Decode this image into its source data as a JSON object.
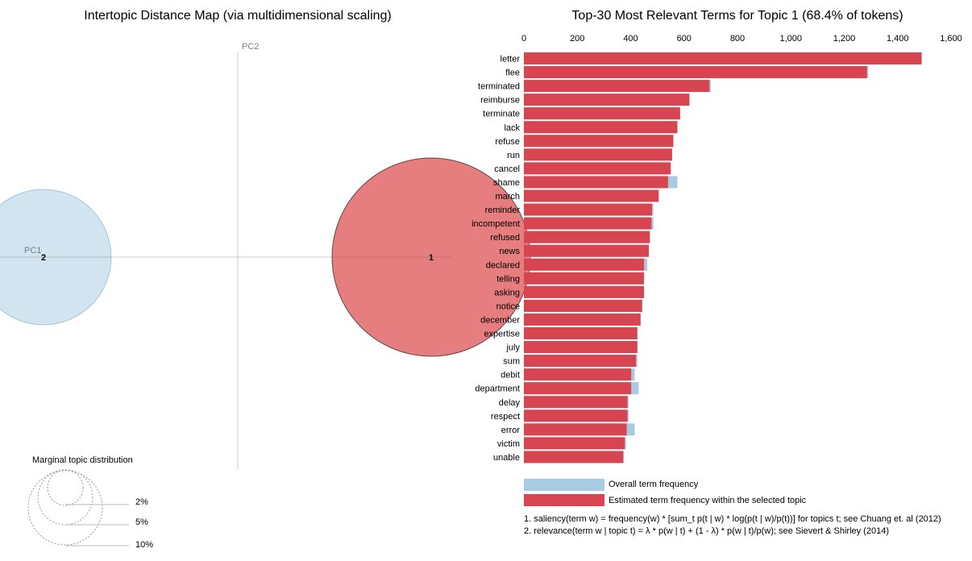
{
  "map": {
    "title": "Intertopic Distance Map (via multidimensional scaling)",
    "pc1_label": "PC1",
    "pc2_label": "PC2",
    "topics": [
      {
        "id": "1",
        "label": "1",
        "selected": true,
        "color": "#d62728"
      },
      {
        "id": "2",
        "label": "2",
        "selected": false,
        "color": "#1f77b4"
      }
    ],
    "marginal": {
      "title": "Marginal topic distribution",
      "sizes": [
        "2%",
        "5%",
        "10%"
      ]
    }
  },
  "chart_data": {
    "type": "bar",
    "orientation": "horizontal",
    "title": "Top-30 Most Relevant Terms for Topic 1 (68.4% of tokens)",
    "xlim": [
      0,
      1600
    ],
    "ticks": [
      "0",
      "200",
      "400",
      "600",
      "800",
      "1,000",
      "1,200",
      "1,400",
      "1,600"
    ],
    "tick_values": [
      0,
      200,
      400,
      600,
      800,
      1000,
      1200,
      1400,
      1600
    ],
    "categories": [
      "letter",
      "flee",
      "terminated",
      "reimburse",
      "terminate",
      "lack",
      "refuse",
      "run",
      "cancel",
      "shame",
      "march",
      "reminder",
      "incompetent",
      "refused",
      "news",
      "declared",
      "telling",
      "asking",
      "notice",
      "december",
      "expertise",
      "july",
      "sum",
      "debit",
      "department",
      "delay",
      "respect",
      "error",
      "victim",
      "unable"
    ],
    "series": [
      {
        "name": "Overall term frequency",
        "color": "#a6cbe3",
        "values": [
          1490,
          1290,
          700,
          620,
          585,
          575,
          560,
          555,
          550,
          575,
          505,
          485,
          485,
          472,
          468,
          462,
          450,
          450,
          443,
          437,
          425,
          425,
          425,
          415,
          430,
          392,
          392,
          415,
          382,
          375
        ]
      },
      {
        "name": "Estimated term frequency within the selected topic",
        "color": "#d64550",
        "values": [
          1490,
          1285,
          695,
          620,
          585,
          575,
          560,
          555,
          550,
          540,
          505,
          480,
          478,
          472,
          468,
          450,
          450,
          450,
          443,
          437,
          425,
          425,
          420,
          402,
          402,
          388,
          388,
          385,
          378,
          372
        ]
      }
    ],
    "legend": {
      "overall": "Overall term frequency",
      "estimated": "Estimated term frequency within the selected topic"
    },
    "notes": [
      "1. saliency(term w) = frequency(w) * [sum_t p(t | w) * log(p(t | w)/p(t))] for topics t; see Chuang et. al (2012)",
      "2. relevance(term w | topic t) = λ * p(w | t) + (1 - λ) * p(w | t)/p(w); see Sievert & Shirley (2014)"
    ]
  }
}
